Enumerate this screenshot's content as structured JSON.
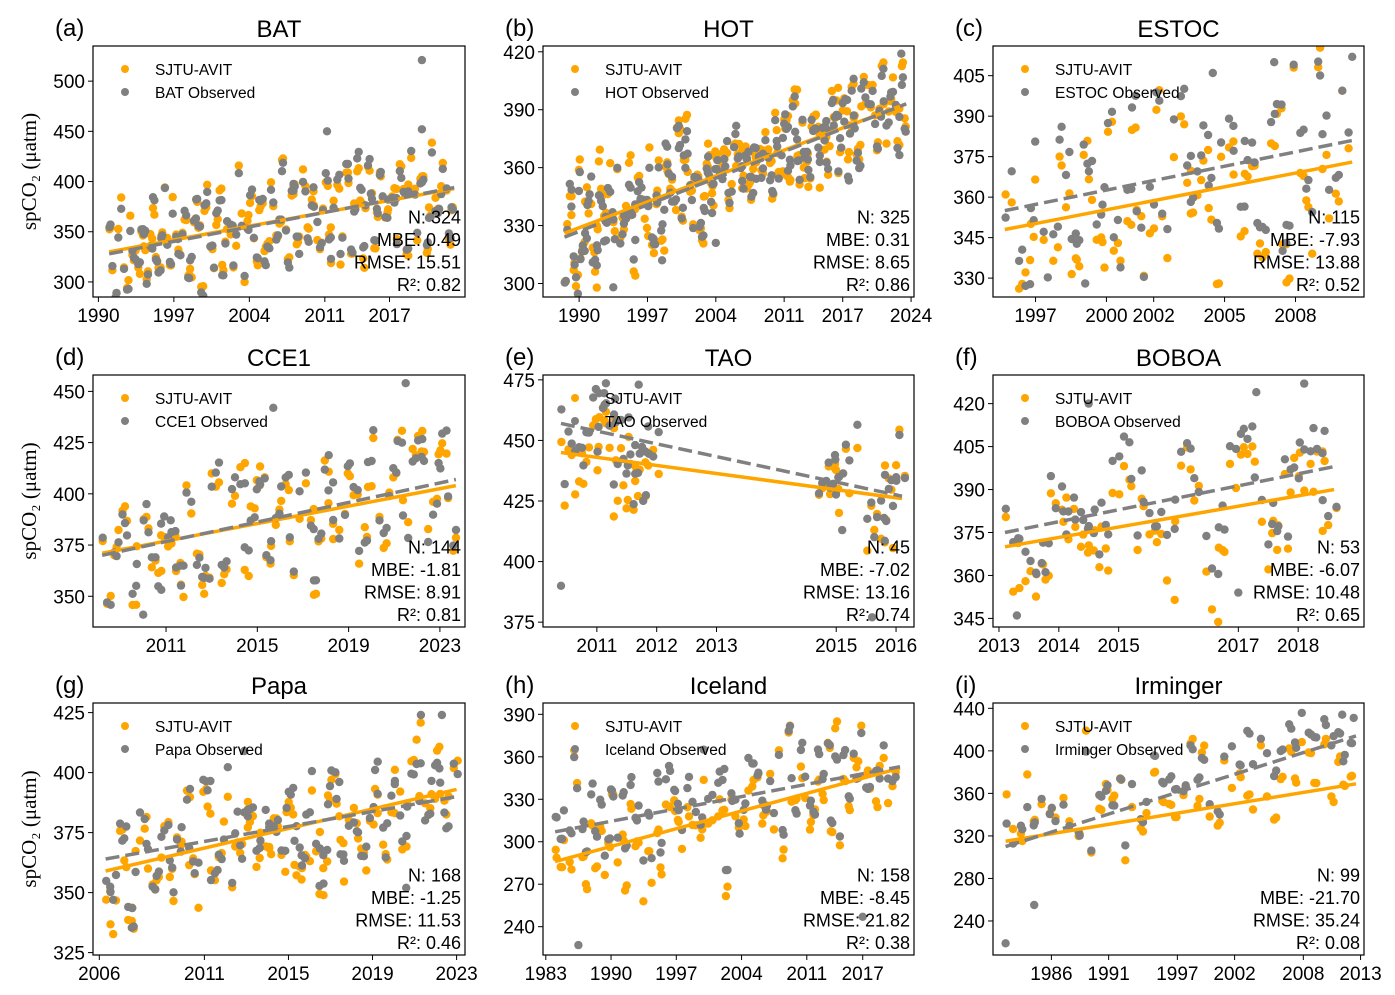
{
  "figure": {
    "ylabel": "spCO₂ (μatm)",
    "colors": {
      "model": "#FFA500",
      "observed": "#808080"
    }
  },
  "chart_data": [
    {
      "type": "scatter",
      "panel": "(a)",
      "title": "BAT",
      "legend": [
        "SJTU-AVIT",
        "BAT Observed"
      ],
      "legend_position": "top-left",
      "xlim": [
        1989.5,
        2024.0
      ],
      "ylim": [
        285,
        535
      ],
      "xticks": [
        1990,
        1997,
        2004,
        2011,
        2017
      ],
      "yticks": [
        300,
        350,
        400,
        450,
        500
      ],
      "show_ylabel": true,
      "stats": {
        "N": "324",
        "MBE": "0.49",
        "RMSE": "15.51",
        "R2": "0.82"
      },
      "trend_model": [
        [
          1991.0,
          330
        ],
        [
          2023.0,
          393
        ]
      ],
      "trend_observed": [
        [
          1991.0,
          328
        ],
        [
          2023.0,
          394
        ]
      ],
      "gen": {
        "x0": 1991.0,
        "x1": 2023.0,
        "n": 120,
        "amp": 38,
        "noise": 12,
        "bias": 0,
        "seed": 11
      },
      "outliers_observed": [
        [
          2020.0,
          521
        ],
        [
          2011.2,
          450
        ],
        [
          2020.0,
          452
        ]
      ]
    },
    {
      "type": "scatter",
      "panel": "(b)",
      "title": "HOT",
      "legend": [
        "SJTU-AVIT",
        "HOT Observed"
      ],
      "legend_position": "top-left",
      "xlim": [
        1986.3,
        2024.3
      ],
      "ylim": [
        293,
        423
      ],
      "xticks": [
        1990,
        1997,
        2004,
        2011,
        2017,
        2024
      ],
      "yticks": [
        300,
        330,
        360,
        390,
        420
      ],
      "show_ylabel": false,
      "stats": {
        "N": "325",
        "MBE": "0.31",
        "RMSE": "8.65",
        "R2": "0.86"
      },
      "trend_model": [
        [
          1988.5,
          326
        ],
        [
          2023.5,
          393
        ]
      ],
      "trend_observed": [
        [
          1988.5,
          324
        ],
        [
          2023.5,
          393
        ]
      ],
      "gen": {
        "x0": 1988.5,
        "x1": 2023.5,
        "n": 150,
        "amp": 12,
        "noise": 9,
        "bias": 0,
        "seed": 23
      },
      "outliers_observed": [
        [
          1993.5,
          298
        ],
        [
          2023.0,
          419
        ],
        [
          1998.5,
          312
        ],
        [
          2004.0,
          321
        ]
      ]
    },
    {
      "type": "scatter",
      "panel": "(c)",
      "title": "ESTOC",
      "legend": [
        "SJTU-AVIT",
        "ESTOC Observed"
      ],
      "legend_position": "top-left",
      "xlim": [
        1995.2,
        2010.9
      ],
      "ylim": [
        323,
        416
      ],
      "xticks": [
        1997,
        2000,
        2002,
        2005,
        2008
      ],
      "yticks": [
        330,
        345,
        360,
        375,
        390,
        405
      ],
      "show_ylabel": false,
      "stats": {
        "N": "115",
        "MBE": "-7.93",
        "RMSE": "13.88",
        "R2": "0.52"
      },
      "trend_model": [
        [
          1995.7,
          348
        ],
        [
          2010.4,
          373
        ]
      ],
      "trend_observed": [
        [
          1995.7,
          355
        ],
        [
          2010.4,
          381
        ]
      ],
      "gen": {
        "x0": 1995.7,
        "x1": 2010.4,
        "n": 58,
        "amp": 20,
        "noise": 9,
        "bias": -7,
        "seed": 37
      },
      "outliers_observed": [
        [
          2010.4,
          412
        ],
        [
          2007.1,
          410
        ],
        [
          2004.5,
          406
        ],
        [
          1999.1,
          328
        ]
      ]
    },
    {
      "type": "scatter",
      "panel": "(d)",
      "title": "CCE1",
      "legend": [
        "SJTU-AVIT",
        "CCE1 Observed"
      ],
      "legend_position": "top-left",
      "xlim": [
        2007.8,
        2024.1
      ],
      "ylim": [
        335,
        458
      ],
      "xticks": [
        2011,
        2015,
        2019,
        2023
      ],
      "yticks": [
        350,
        375,
        400,
        425,
        450
      ],
      "show_ylabel": true,
      "stats": {
        "N": "144",
        "MBE": "-1.81",
        "RMSE": "8.91",
        "R2": "0.81"
      },
      "trend_model": [
        [
          2008.2,
          371
        ],
        [
          2023.7,
          404
        ]
      ],
      "trend_observed": [
        [
          2008.2,
          370
        ],
        [
          2023.7,
          407
        ]
      ],
      "gen": {
        "x0": 2008.2,
        "x1": 2023.7,
        "n": 72,
        "amp": 20,
        "noise": 8,
        "bias": -2,
        "seed": 41
      },
      "outliers_observed": [
        [
          2021.5,
          454
        ],
        [
          2015.7,
          442
        ],
        [
          2010.0,
          341
        ]
      ]
    },
    {
      "type": "scatter",
      "panel": "(e)",
      "title": "TAO",
      "legend": [
        "SJTU-AVIT",
        "TAO Observed"
      ],
      "legend_position": "top-left",
      "xlim": [
        2010.1,
        2016.3
      ],
      "ylim": [
        373,
        477
      ],
      "xticks": [
        2011,
        2012,
        2013,
        2015,
        2016
      ],
      "yticks": [
        375,
        400,
        425,
        450,
        475
      ],
      "show_ylabel": false,
      "stats": {
        "N": "45",
        "MBE": "-7.02",
        "RMSE": "13.16",
        "R2": "0.74"
      },
      "trend_model": [
        [
          2010.4,
          445
        ],
        [
          2016.1,
          426
        ]
      ],
      "trend_observed": [
        [
          2010.4,
          457
        ],
        [
          2016.1,
          427
        ]
      ],
      "gen_segments": [
        [
          2010.4,
          2011.9
        ],
        [
          2014.7,
          2015.2
        ],
        [
          2015.5,
          2016.1
        ]
      ],
      "gen": {
        "x0": 2010.4,
        "x1": 2016.1,
        "n": 45,
        "amp": 12,
        "noise": 8,
        "bias": -7,
        "seed": 53
      },
      "outliers_observed": [
        [
          2010.4,
          390
        ],
        [
          2011.7,
          473
        ],
        [
          2015.6,
          377
        ],
        [
          2015.8,
          418
        ],
        [
          2015.1,
          413
        ]
      ]
    },
    {
      "type": "scatter",
      "panel": "(f)",
      "title": "BOBOA",
      "legend": [
        "SJTU-AVIT",
        "BOBOA Observed"
      ],
      "legend_position": "top-left",
      "xlim": [
        2012.9,
        2019.1
      ],
      "ylim": [
        342,
        430
      ],
      "xticks": [
        2013,
        2014,
        2015,
        2017,
        2018
      ],
      "yticks": [
        345,
        360,
        375,
        390,
        405,
        420
      ],
      "show_ylabel": false,
      "stats": {
        "N": "53",
        "MBE": "-6.07",
        "RMSE": "10.48",
        "R2": "0.65"
      },
      "trend_model": [
        [
          2013.1,
          370
        ],
        [
          2018.6,
          390
        ]
      ],
      "trend_observed": [
        [
          2013.1,
          375
        ],
        [
          2018.6,
          398
        ]
      ],
      "gen": {
        "x0": 2013.1,
        "x1": 2018.6,
        "n": 53,
        "amp": 14,
        "noise": 8,
        "bias": -6,
        "seed": 61
      },
      "outliers_observed": [
        [
          2018.1,
          427
        ],
        [
          2017.3,
          424
        ],
        [
          2014.5,
          420
        ],
        [
          2013.3,
          346
        ],
        [
          2017.0,
          354
        ]
      ]
    },
    {
      "type": "scatter",
      "panel": "(g)",
      "title": "Papa",
      "legend": [
        "SJTU-AVIT",
        "Papa Observed"
      ],
      "legend_position": "top-left",
      "xlim": [
        2005.7,
        2023.4
      ],
      "ylim": [
        324,
        429
      ],
      "xticks": [
        2006,
        2011,
        2015,
        2019,
        2023
      ],
      "yticks": [
        325,
        350,
        375,
        400,
        425
      ],
      "show_ylabel": true,
      "stats": {
        "N": "168",
        "MBE": "-1.25",
        "RMSE": "11.53",
        "R2": "0.46"
      },
      "trend_model": [
        [
          2006.3,
          359
        ],
        [
          2023.0,
          393
        ]
      ],
      "trend_observed": [
        [
          2006.3,
          364
        ],
        [
          2023.0,
          390
        ]
      ],
      "gen": {
        "x0": 2006.3,
        "x1": 2023.0,
        "n": 84,
        "amp": 12,
        "noise": 9,
        "bias": -1,
        "seed": 71
      },
      "outliers_observed": [
        [
          2021.3,
          424
        ],
        [
          2022.3,
          424
        ],
        [
          2012.9,
          409
        ],
        [
          2020.6,
          352
        ]
      ]
    },
    {
      "type": "scatter",
      "panel": "(h)",
      "title": "Iceland",
      "legend": [
        "SJTU-AVIT",
        "Iceland Observed"
      ],
      "legend_position": "top-left",
      "xlim": [
        1982.7,
        2022.5
      ],
      "ylim": [
        220,
        398
      ],
      "xticks": [
        1983,
        1990,
        1997,
        2004,
        2011,
        2017
      ],
      "yticks": [
        240,
        270,
        300,
        330,
        360,
        390
      ],
      "show_ylabel": false,
      "stats": {
        "N": "158",
        "MBE": "-8.45",
        "RMSE": "21.82",
        "R2": "0.38"
      },
      "trend_model": [
        [
          1984.0,
          286
        ],
        [
          2021.0,
          352
        ]
      ],
      "trend_observed": [
        [
          1984.0,
          307
        ],
        [
          2021.0,
          353
        ]
      ],
      "gen": {
        "x0": 1984.0,
        "x1": 2021.0,
        "n": 79,
        "amp": 16,
        "noise": 14,
        "bias": -8,
        "seed": 83
      },
      "outliers_observed": [
        [
          1986.5,
          227
        ],
        [
          2017.0,
          247
        ],
        [
          1990.0,
          337
        ]
      ]
    },
    {
      "type": "scatter",
      "panel": "(i)",
      "title": "Irminger",
      "legend": [
        "SJTU-AVIT",
        "Irminger Observed"
      ],
      "legend_position": "top-left",
      "xlim": [
        1980.9,
        2013.3
      ],
      "ylim": [
        208,
        445
      ],
      "xticks": [
        1986,
        1991,
        1997,
        2002,
        2008,
        2013
      ],
      "yticks": [
        240,
        280,
        320,
        360,
        400,
        440
      ],
      "show_ylabel": false,
      "stats": {
        "N": "99",
        "MBE": "-21.70",
        "RMSE": "35.24",
        "R2": "0.08"
      },
      "trend_model": [
        [
          1982.0,
          315
        ],
        [
          2012.6,
          369
        ]
      ],
      "trend_observed": [
        [
          1982.0,
          310
        ],
        [
          2012.6,
          414
        ]
      ],
      "gen": {
        "x0": 1982.0,
        "x1": 2012.6,
        "n": 50,
        "amp": 18,
        "noise": 20,
        "bias": -22,
        "seed": 97
      },
      "outliers_observed": [
        [
          1982.0,
          219
        ],
        [
          1984.5,
          255
        ],
        [
          2011.4,
          434
        ],
        [
          2012.4,
          431
        ]
      ]
    }
  ]
}
